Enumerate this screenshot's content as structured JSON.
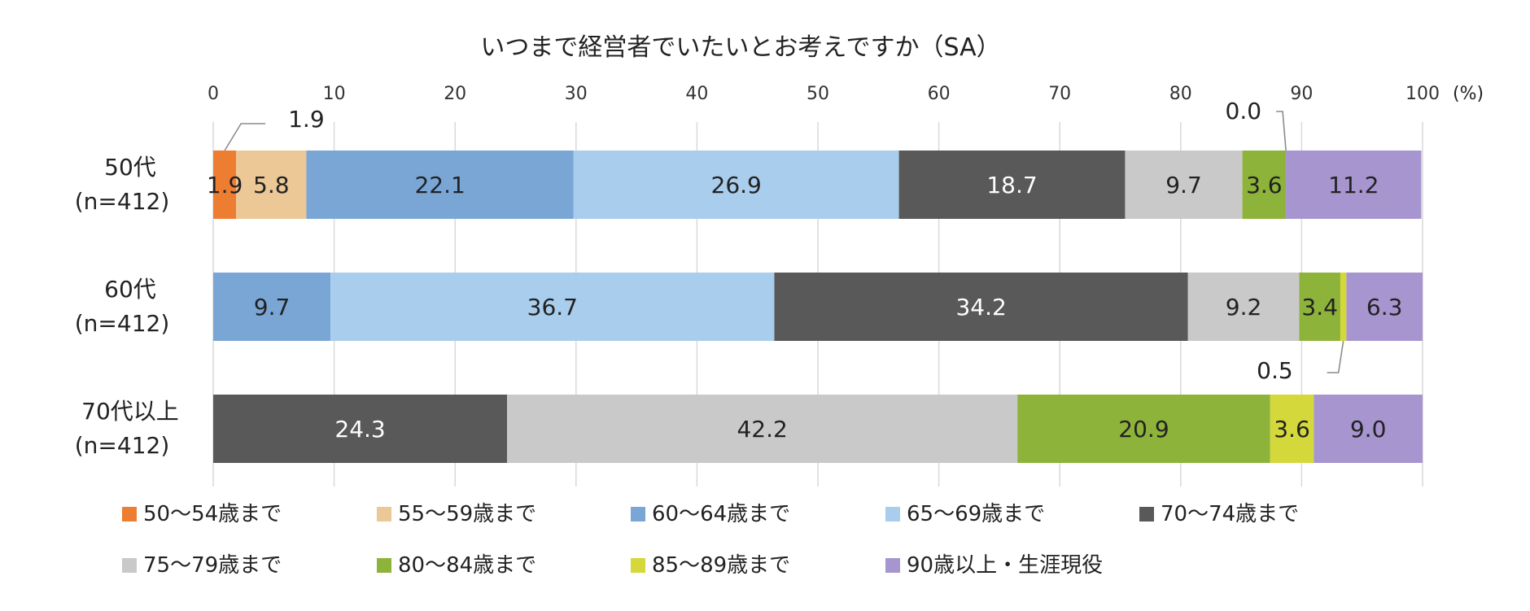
{
  "chart_data": {
    "type": "bar",
    "orientation": "horizontal",
    "stacked": true,
    "title": "いつまで経営者でいたいとお考えですか（SA）",
    "unit_label": "(%)",
    "xlim": [
      0,
      100
    ],
    "x_ticks": [
      "0",
      "10",
      "20",
      "30",
      "40",
      "50",
      "60",
      "70",
      "80",
      "90",
      "100"
    ],
    "x_tick_values": [
      0,
      10,
      20,
      30,
      40,
      50,
      60,
      70,
      80,
      90,
      100
    ],
    "legend_position": "bottom",
    "categories": [
      {
        "line1": "50代",
        "line2": "(n=412)"
      },
      {
        "line1": "60代",
        "line2": "(n=412)"
      },
      {
        "line1": "70代以上",
        "line2": "(n=412)"
      }
    ],
    "series": [
      {
        "name": "50～54歳まで",
        "color": "#ed7d31",
        "label_color": "#222222",
        "values": [
          1.9,
          null,
          null
        ],
        "labels": [
          "1.9",
          "",
          ""
        ]
      },
      {
        "name": "55～59歳まで",
        "color": "#ecc896",
        "label_color": "#222222",
        "values": [
          5.8,
          null,
          null
        ],
        "labels": [
          "5.8",
          "",
          ""
        ]
      },
      {
        "name": "60～64歳まで",
        "color": "#7aa6d6",
        "label_color": "#222222",
        "values": [
          22.1,
          9.7,
          null
        ],
        "labels": [
          "22.1",
          "9.7",
          ""
        ]
      },
      {
        "name": "65～69歳まで",
        "color": "#a9cdec",
        "label_color": "#222222",
        "values": [
          26.9,
          36.7,
          null
        ],
        "labels": [
          "26.9",
          "36.7",
          ""
        ]
      },
      {
        "name": "70～74歳まで",
        "color": "#595959",
        "label_color": "#ffffff",
        "values": [
          18.7,
          34.2,
          24.3
        ],
        "labels": [
          "18.7",
          "34.2",
          "24.3"
        ]
      },
      {
        "name": "75～79歳まで",
        "color": "#c9c9c9",
        "label_color": "#222222",
        "values": [
          9.7,
          9.2,
          42.2
        ],
        "labels": [
          "9.7",
          "9.2",
          "42.2"
        ]
      },
      {
        "name": "80～84歳まで",
        "color": "#8db33a",
        "label_color": "#222222",
        "values": [
          3.6,
          3.4,
          20.9
        ],
        "labels": [
          "3.6",
          "3.4",
          "20.9"
        ]
      },
      {
        "name": "85～89歳まで",
        "color": "#d4d83a",
        "label_color": "#222222",
        "values": [
          0.0,
          0.5,
          3.6
        ],
        "labels": [
          "",
          "",
          "3.6"
        ]
      },
      {
        "name": "90歳以上・生涯現役",
        "color": "#a695cf",
        "label_color": "#222222",
        "values": [
          11.2,
          6.3,
          9.0
        ],
        "labels": [
          "11.2",
          "6.3",
          "9.0"
        ]
      }
    ],
    "callouts": [
      {
        "text": "1.9",
        "category_index": 0,
        "series_index": 0
      },
      {
        "text": "0.0",
        "category_index": 0,
        "series_index": 7
      },
      {
        "text": "0.5",
        "category_index": 1,
        "series_index": 7
      }
    ]
  }
}
